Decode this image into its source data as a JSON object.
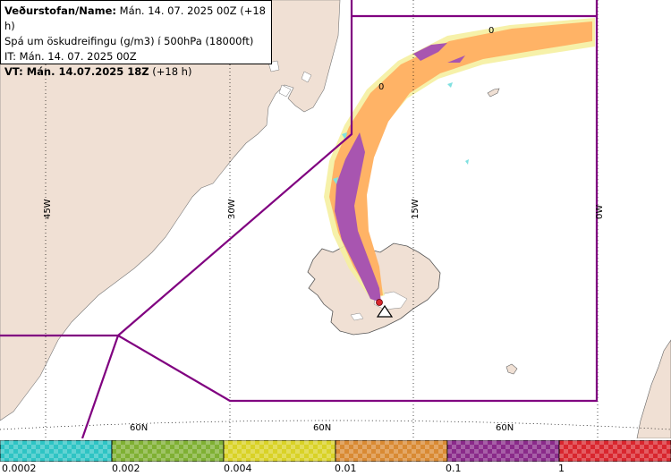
{
  "header": {
    "line1_bold": "Veðurstofan/Name:",
    "line1_value": " Mán. 14. 07. 2025 00Z (+18 h)",
    "line2": "Spá um öskudreifingu (g/m3) í 500hPa (18000ft)",
    "line3": "IT: Mán. 14. 07. 2025 00Z",
    "line4_bold": "VT: Mán. 14.07.2025 18Z",
    "line4_value": " (+18 h)"
  },
  "grid": {
    "lon_labels": [
      "45W",
      "30W",
      "15W",
      "0W"
    ],
    "lat_label": "60N"
  },
  "markers": {
    "contour_zero": "0"
  },
  "legend": {
    "colors": [
      "#2ec4c4",
      "#7fb033",
      "#d9d226",
      "#d98a33",
      "#8a2a8a",
      "#d9262e"
    ],
    "ticks": [
      "0.0002",
      "0.002",
      "0.004",
      "0.01",
      "0.1",
      "1"
    ]
  },
  "colors": {
    "land": "#f0e0d4",
    "boundary": "#800080",
    "plume_orange": "#ffb366",
    "plume_purple": "#a855b0",
    "plume_yellow": "#f5f0a0"
  }
}
